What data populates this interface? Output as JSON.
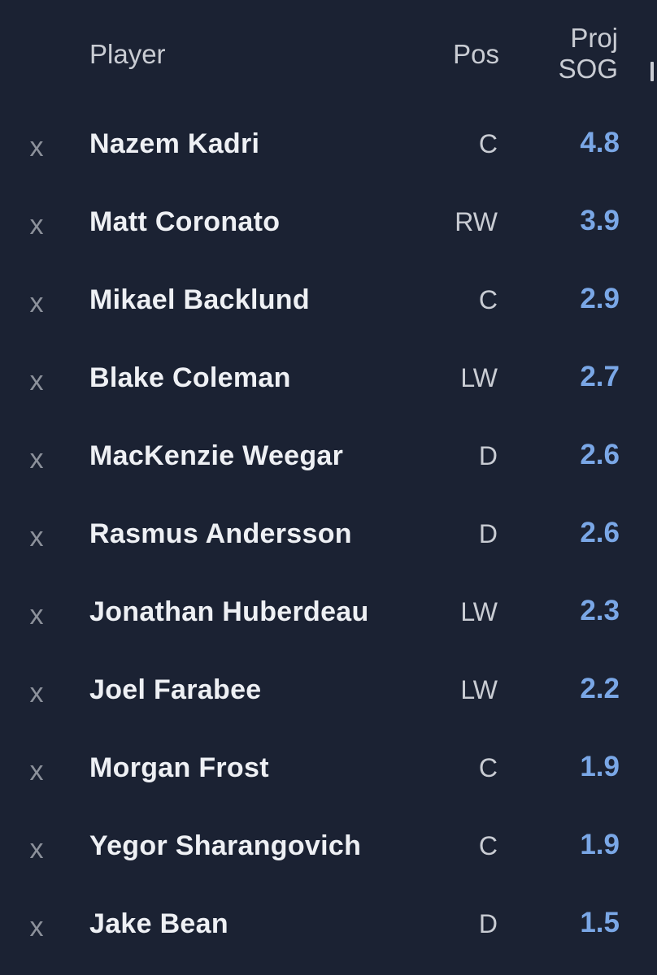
{
  "header": {
    "player": "Player",
    "pos": "Pos",
    "proj_line1": "Proj",
    "proj_line2": "SOG"
  },
  "remove_symbol": "x",
  "colors": {
    "background": "#1b2233",
    "name": "#eef0f4",
    "secondary": "#c9ccd3",
    "remove": "#8c919b",
    "value": "#7aa7e6"
  },
  "rows": [
    {
      "name": "Nazem Kadri",
      "pos": "C",
      "sog": "4.8"
    },
    {
      "name": "Matt Coronato",
      "pos": "RW",
      "sog": "3.9"
    },
    {
      "name": "Mikael Backlund",
      "pos": "C",
      "sog": "2.9"
    },
    {
      "name": "Blake Coleman",
      "pos": "LW",
      "sog": "2.7"
    },
    {
      "name": "MacKenzie Weegar",
      "pos": "D",
      "sog": "2.6"
    },
    {
      "name": "Rasmus Andersson",
      "pos": "D",
      "sog": "2.6"
    },
    {
      "name": "Jonathan Huberdeau",
      "pos": "LW",
      "sog": "2.3"
    },
    {
      "name": "Joel Farabee",
      "pos": "LW",
      "sog": "2.2"
    },
    {
      "name": "Morgan Frost",
      "pos": "C",
      "sog": "1.9"
    },
    {
      "name": "Yegor Sharangovich",
      "pos": "C",
      "sog": "1.9"
    },
    {
      "name": "Jake Bean",
      "pos": "D",
      "sog": "1.5"
    }
  ]
}
